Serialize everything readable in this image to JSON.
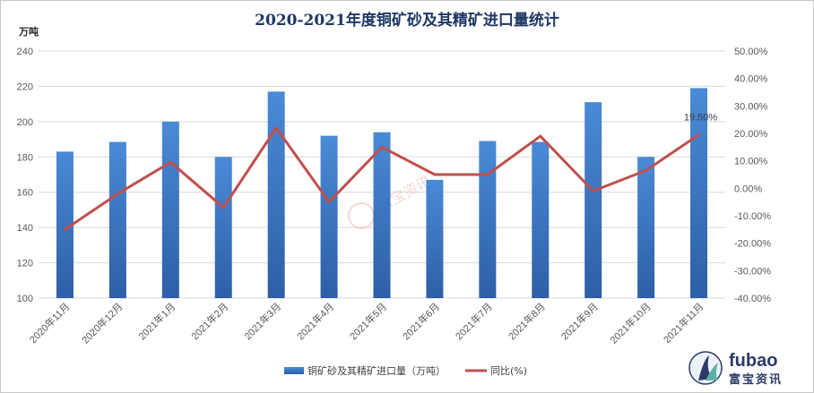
{
  "chart_data": {
    "type": "bar+line",
    "title": "2020-2021年度铜矿砂及其精矿进口量统计",
    "left_axis_label": "万吨",
    "categories": [
      "2020年11月",
      "2020年12月",
      "2021年1月",
      "2021年2月",
      "2021年3月",
      "2021年4月",
      "2021年5月",
      "2021年6月",
      "2021年7月",
      "2021年8月",
      "2021年9月",
      "2021年10月",
      "2021年11月"
    ],
    "series": [
      {
        "name": "铜矿砂及其精矿进口量（万吨）",
        "kind": "bar",
        "axis": "left",
        "color": "#3b78c6",
        "values": [
          183,
          188.5,
          200,
          180,
          217,
          192,
          194,
          167,
          189,
          188.5,
          211,
          180,
          219
        ]
      },
      {
        "name": "同比(%)",
        "kind": "line",
        "axis": "right",
        "color": "#c0504d",
        "values": [
          -15,
          -2,
          9.5,
          -7,
          22,
          -5,
          15,
          5,
          5,
          19,
          -1,
          6.5,
          19.5
        ]
      }
    ],
    "left_ylim": [
      100,
      240
    ],
    "left_ticks": [
      "100",
      "120",
      "140",
      "160",
      "180",
      "200",
      "220",
      "240"
    ],
    "right_ylim": [
      -40,
      50
    ],
    "right_ticks": [
      "-40.00%",
      "-30.00%",
      "-20.00%",
      "-10.00%",
      "0.00%",
      "10.00%",
      "20.00%",
      "30.00%",
      "40.00%",
      "50.00%"
    ],
    "annotation": "19.50%",
    "grid": true,
    "legend_position": "bottom"
  },
  "watermark": "富宝资讯",
  "logo": {
    "brand": "fubao",
    "subtitle": "富宝资讯"
  }
}
